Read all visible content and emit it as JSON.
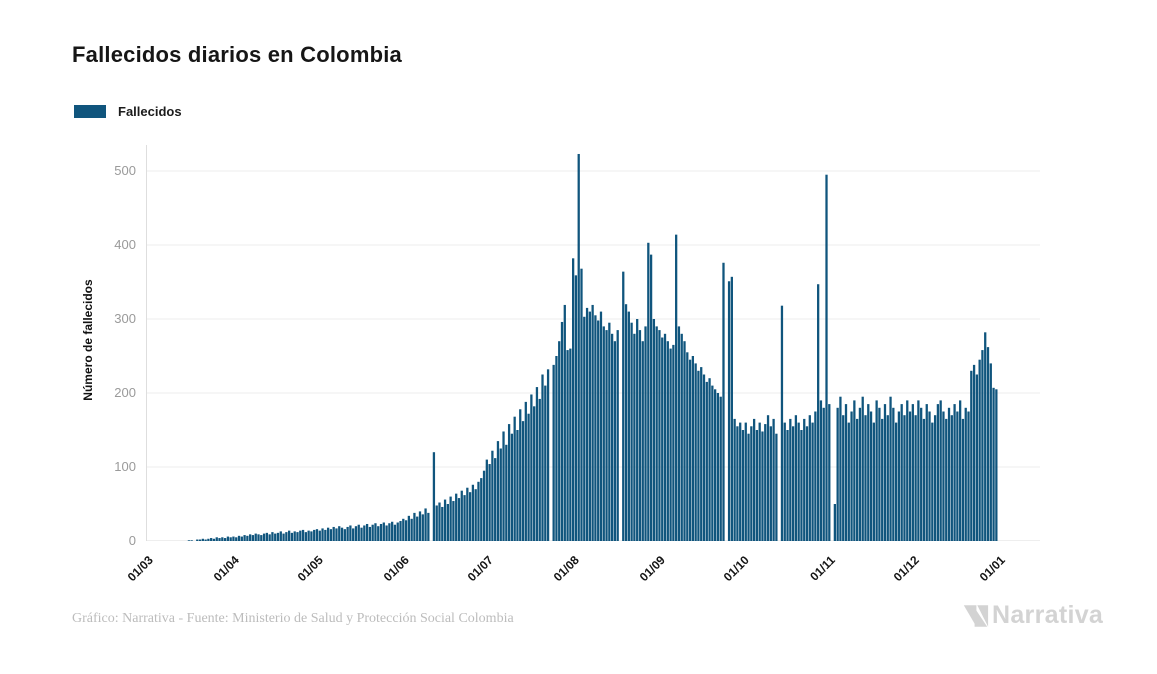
{
  "title": "Fallecidos diarios en Colombia",
  "legend": {
    "label": "Fallecidos",
    "color": "#10557d"
  },
  "y_axis": {
    "label": "Número de fallecidos",
    "ticks": [
      0,
      100,
      200,
      300,
      400,
      500
    ]
  },
  "x_axis": {
    "tick_labels": [
      "01/03",
      "01/04",
      "01/05",
      "01/06",
      "01/07",
      "01/08",
      "01/09",
      "01/10",
      "01/11",
      "01/12",
      "01/01"
    ]
  },
  "footer": {
    "credit": "Gráfico: Narrativa - Fuente: Ministerio de Salud y Protección Social Colombia",
    "brand": "Narrativa"
  },
  "colors": {
    "bar": "#10557d",
    "grid": "#ececec",
    "axis": "#dedede",
    "tick_text": "#9a9a9a"
  },
  "chart_data": {
    "type": "bar",
    "title": "Fallecidos diarios en Colombia",
    "series_name": "Fallecidos",
    "xlabel": "",
    "ylabel": "Número de fallecidos",
    "ylim": [
      0,
      530
    ],
    "grid": true,
    "legend_position": "top-left",
    "x_unit": "day",
    "x_tick_labels": [
      "01/03",
      "01/04",
      "01/05",
      "01/06",
      "01/07",
      "01/08",
      "01/09",
      "01/10",
      "01/11",
      "01/12",
      "01/01"
    ],
    "x_tick_day_offsets": [
      0,
      31,
      61,
      92,
      122,
      153,
      184,
      214,
      245,
      275,
      306
    ],
    "values": [
      0,
      0,
      0,
      0,
      0,
      0,
      0,
      0,
      0,
      0,
      0,
      0,
      0,
      0,
      0,
      1,
      1,
      0,
      2,
      2,
      3,
      2,
      3,
      4,
      3,
      5,
      4,
      5,
      4,
      6,
      5,
      6,
      5,
      7,
      6,
      8,
      7,
      9,
      8,
      10,
      9,
      8,
      10,
      11,
      9,
      12,
      10,
      11,
      13,
      10,
      12,
      14,
      11,
      13,
      12,
      14,
      15,
      12,
      14,
      13,
      15,
      16,
      14,
      17,
      15,
      18,
      16,
      19,
      17,
      20,
      18,
      16,
      19,
      21,
      17,
      20,
      22,
      18,
      21,
      23,
      19,
      22,
      24,
      20,
      23,
      25,
      21,
      24,
      26,
      22,
      25,
      27,
      30,
      28,
      34,
      30,
      38,
      33,
      40,
      36,
      44,
      38,
      0,
      120,
      48,
      52,
      46,
      56,
      50,
      60,
      54,
      64,
      58,
      68,
      62,
      72,
      66,
      76,
      70,
      80,
      85,
      95,
      110,
      104,
      122,
      112,
      135,
      125,
      148,
      130,
      158,
      145,
      168,
      150,
      178,
      162,
      188,
      172,
      198,
      182,
      208,
      192,
      225,
      210,
      232,
      0,
      238,
      250,
      270,
      296,
      319,
      258,
      260,
      382,
      359,
      523,
      368,
      303,
      315,
      310,
      319,
      305,
      298,
      310,
      290,
      285,
      295,
      280,
      270,
      285,
      0,
      364,
      320,
      310,
      295,
      280,
      300,
      285,
      270,
      290,
      403,
      387,
      300,
      290,
      285,
      275,
      280,
      270,
      260,
      265,
      414,
      290,
      280,
      270,
      255,
      245,
      250,
      240,
      230,
      235,
      225,
      215,
      220,
      210,
      205,
      200,
      195,
      376,
      0,
      351,
      357,
      165,
      155,
      160,
      150,
      160,
      145,
      155,
      165,
      150,
      160,
      148,
      158,
      170,
      155,
      165,
      145,
      0,
      318,
      160,
      150,
      165,
      155,
      170,
      160,
      150,
      165,
      155,
      170,
      160,
      175,
      347,
      190,
      180,
      495,
      185,
      0,
      50,
      180,
      195,
      170,
      185,
      160,
      175,
      190,
      165,
      180,
      195,
      170,
      185,
      175,
      160,
      190,
      180,
      165,
      185,
      170,
      195,
      180,
      160,
      175,
      185,
      170,
      190,
      175,
      185,
      170,
      190,
      180,
      165,
      185,
      175,
      160,
      170,
      185,
      190,
      175,
      165,
      180,
      170,
      185,
      175,
      190,
      165,
      180,
      175,
      230,
      238,
      225,
      245,
      258,
      282,
      262,
      240,
      207,
      205
    ]
  }
}
